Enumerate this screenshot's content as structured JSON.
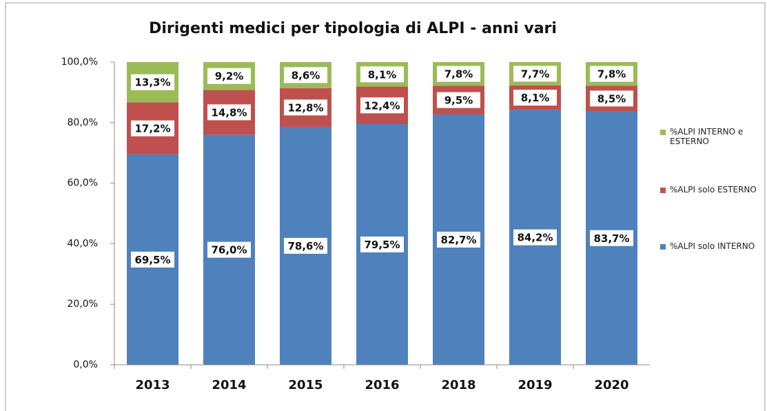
{
  "chart_data": {
    "type": "stacked_bar",
    "title": "Dirigenti medici per tipologia di ALPI - anni vari",
    "categories": [
      "2013",
      "2014",
      "2015",
      "2016",
      "2018",
      "2019",
      "2020"
    ],
    "series": [
      {
        "name": "%ALPI solo INTERNO",
        "color": "#4f81bd",
        "values": [
          69.5,
          76.0,
          78.6,
          79.5,
          82.7,
          84.2,
          83.7
        ],
        "value_labels": [
          "69,5%",
          "76,0%",
          "78,6%",
          "79,5%",
          "82,7%",
          "84,2%",
          "83,7%"
        ]
      },
      {
        "name": "%ALPI solo ESTERNO",
        "color": "#c0504d",
        "values": [
          17.2,
          14.8,
          12.8,
          12.4,
          9.5,
          8.1,
          8.5
        ],
        "value_labels": [
          "17,2%",
          "14,8%",
          "12,8%",
          "12,4%",
          "9,5%",
          "8,1%",
          "8,5%"
        ]
      },
      {
        "name": "%ALPI INTERNO e ESTERNO",
        "color": "#9bbb59",
        "values": [
          13.3,
          9.2,
          8.6,
          8.1,
          7.8,
          7.7,
          7.8
        ],
        "value_labels": [
          "13,3%",
          "9,2%",
          "8,6%",
          "8,1%",
          "7,8%",
          "7,7%",
          "7,8%"
        ]
      }
    ],
    "ylim": [
      0,
      100
    ],
    "yticks": [
      {
        "value": 0,
        "label": "0,0%"
      },
      {
        "value": 20,
        "label": "20,0%"
      },
      {
        "value": 40,
        "label": "40,0%"
      },
      {
        "value": 60,
        "label": "60,0%"
      },
      {
        "value": 80,
        "label": "80,0%"
      },
      {
        "value": 100,
        "label": "100,0%"
      }
    ],
    "legend": "right"
  }
}
